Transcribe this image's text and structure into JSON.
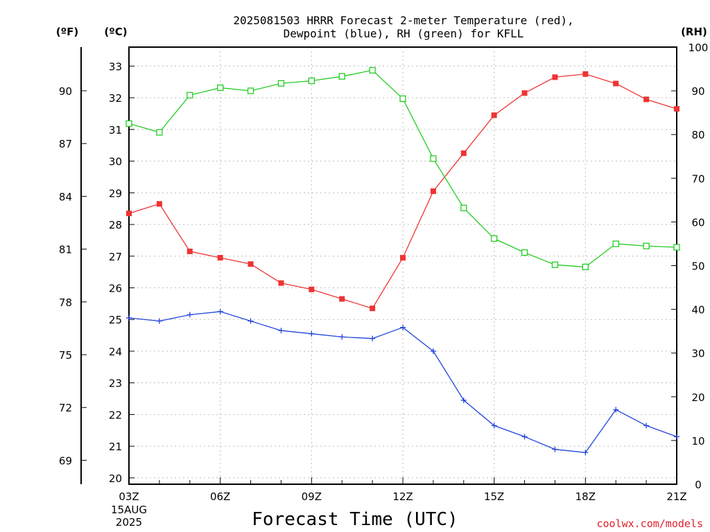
{
  "chart_data": {
    "type": "line",
    "title_line1": "2025081503 HRRR Forecast 2-meter Temperature (red),",
    "title_line2": "Dewpoint (blue), RH (green) for KFLL",
    "xlabel": "Forecast Time (UTC)",
    "x_hours": [
      3,
      4,
      5,
      6,
      7,
      8,
      9,
      10,
      11,
      12,
      13,
      14,
      15,
      16,
      17,
      18,
      19,
      20,
      21
    ],
    "x_ticks": [
      {
        "hour": 3,
        "label": "03Z"
      },
      {
        "hour": 6,
        "label": "06Z"
      },
      {
        "hour": 9,
        "label": "09Z"
      },
      {
        "hour": 12,
        "label": "12Z"
      },
      {
        "hour": 15,
        "label": "15Z"
      },
      {
        "hour": 18,
        "label": "18Z"
      },
      {
        "hour": 21,
        "label": "21Z"
      }
    ],
    "date_line1": "15AUG",
    "date_line2": "2025",
    "axes": {
      "celsius": {
        "unit_label": "(ºC)",
        "range": [
          19.8,
          33.6
        ],
        "ticks": [
          20,
          21,
          22,
          23,
          24,
          25,
          26,
          27,
          28,
          29,
          30,
          31,
          32,
          33
        ]
      },
      "fahrenheit": {
        "unit_label": "(ºF)",
        "ticks": [
          69,
          72,
          75,
          78,
          81,
          84,
          87,
          90
        ]
      },
      "rh": {
        "unit_label": "(RH)",
        "range": [
          0,
          100
        ],
        "ticks": [
          0,
          10,
          20,
          30,
          40,
          50,
          60,
          70,
          80,
          90,
          100
        ]
      }
    },
    "series": [
      {
        "key": "temperature",
        "color": "#ee3333",
        "marker": "filled-square",
        "values": [
          28.35,
          28.65,
          27.15,
          26.95,
          26.75,
          26.15,
          25.95,
          25.65,
          25.35,
          26.95,
          29.05,
          30.25,
          31.45,
          32.15,
          32.65,
          32.75,
          32.45,
          31.95,
          31.65
        ]
      },
      {
        "key": "dewpoint",
        "color": "#2244dd",
        "marker": "plus",
        "values": [
          25.05,
          24.95,
          25.15,
          25.25,
          24.95,
          24.65,
          24.55,
          24.45,
          24.4,
          24.75,
          24.0,
          22.45,
          21.65,
          21.3,
          20.9,
          20.8,
          22.15,
          21.65,
          21.3
        ]
      },
      {
        "key": "rh",
        "color": "#22cc22",
        "marker": "open-square",
        "values": [
          82.5,
          80.5,
          89.0,
          90.7,
          90.0,
          91.7,
          92.3,
          93.3,
          94.7,
          88.2,
          74.5,
          63.2,
          56.2,
          53.0,
          50.2,
          49.7,
          55.0,
          54.5,
          54.2
        ]
      }
    ],
    "grid": true
  },
  "credit": "coolwx.com/models"
}
